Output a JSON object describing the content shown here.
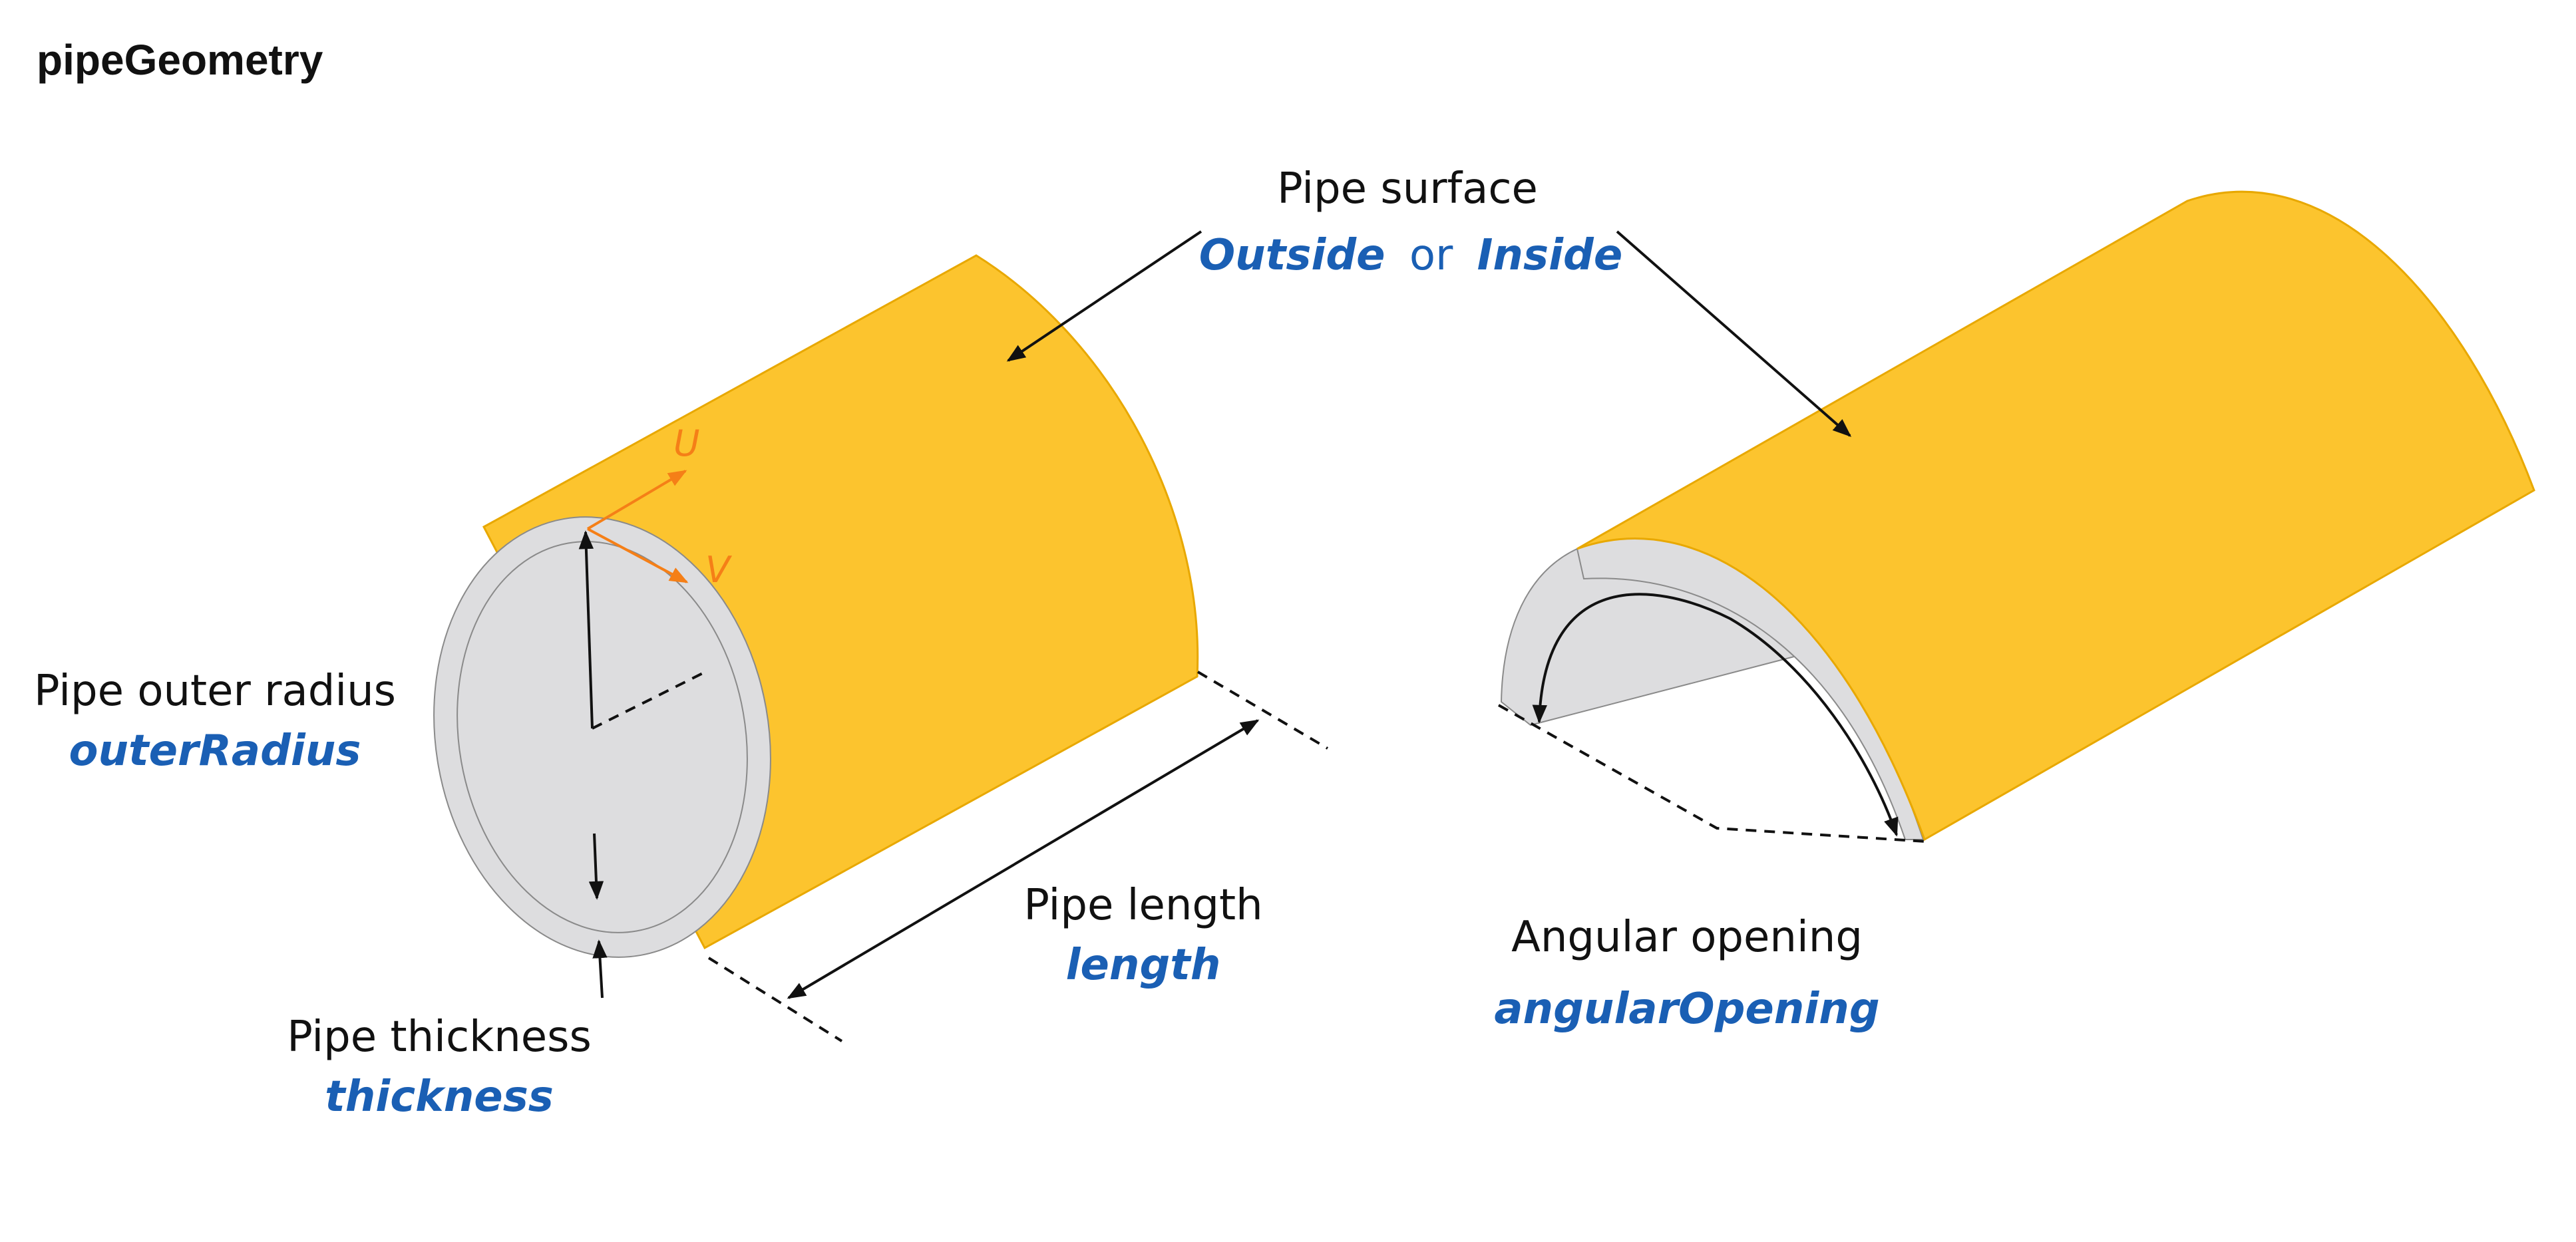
{
  "title": "pipeGeometry",
  "colors": {
    "surface": "#FCC42E",
    "surface_edge": "#E8A800",
    "end_face": "#DDDDDF",
    "end_face_line": "#8A8A8A",
    "param": "#1A5FB4",
    "axis": "#F57F17",
    "line": "#111111"
  },
  "labels": {
    "surface": {
      "text": "Pipe surface",
      "outside": "Outside",
      "or": "or",
      "inside": "Inside"
    },
    "outer_radius": {
      "text": "Pipe outer radius",
      "param": "outerRadius"
    },
    "thickness": {
      "text": "Pipe thickness",
      "param": "thickness"
    },
    "length": {
      "text": "Pipe length",
      "param": "length"
    },
    "angular": {
      "text": "Angular opening",
      "param": "angularOpening"
    }
  },
  "axes": {
    "u": "U",
    "v": "V"
  }
}
